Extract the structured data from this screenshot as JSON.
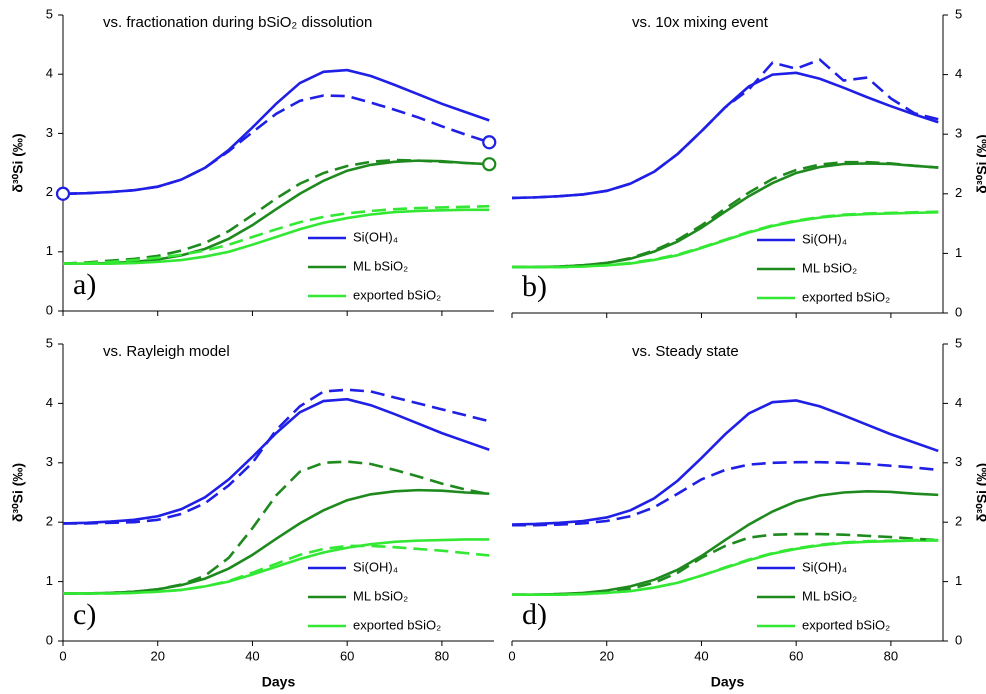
{
  "chart_data": [
    {
      "type": "line",
      "title": "vs. fractionation during bSiO₂ dissolution",
      "panel_label": "a)",
      "y_label": "δ³⁰Si (‰)",
      "y_axis_side": "left",
      "legend": "lower right",
      "x": [
        0,
        5,
        10,
        15,
        20,
        25,
        30,
        35,
        40,
        45,
        50,
        55,
        60,
        65,
        70,
        75,
        80,
        85,
        90
      ],
      "xlim": [
        0,
        91
      ],
      "xticks": [
        0,
        20,
        40,
        60,
        80
      ],
      "x_tick_labels": false,
      "ylim": [
        0,
        5
      ],
      "yticks": [
        0,
        1,
        2,
        3,
        4,
        5
      ],
      "series": [
        {
          "name": "Si(OH)₄",
          "color": "#1f1fe6",
          "dashed": false,
          "values": [
            1.98,
            1.99,
            2.01,
            2.04,
            2.1,
            2.22,
            2.42,
            2.72,
            3.1,
            3.5,
            3.85,
            4.04,
            4.07,
            3.97,
            3.82,
            3.66,
            3.5,
            3.36,
            3.22
          ]
        },
        {
          "name": "ML bSiO₂",
          "color": "#1e8a1e",
          "dashed": false,
          "values": [
            0.8,
            0.8,
            0.81,
            0.83,
            0.87,
            0.94,
            1.05,
            1.22,
            1.45,
            1.72,
            1.98,
            2.2,
            2.37,
            2.47,
            2.52,
            2.54,
            2.53,
            2.5,
            2.48
          ]
        },
        {
          "name": "exported bSiO₂",
          "color": "#33e833",
          "dashed": false,
          "values": [
            0.8,
            0.8,
            0.8,
            0.81,
            0.83,
            0.86,
            0.92,
            1.0,
            1.12,
            1.25,
            1.38,
            1.49,
            1.57,
            1.63,
            1.67,
            1.69,
            1.7,
            1.71,
            1.71
          ]
        },
        {
          "color": "#1f1fe6",
          "dashed": true,
          "values": [
            1.98,
            1.99,
            2.01,
            2.04,
            2.1,
            2.22,
            2.42,
            2.7,
            3.02,
            3.33,
            3.55,
            3.64,
            3.63,
            3.52,
            3.4,
            3.27,
            3.12,
            2.98,
            2.85
          ]
        },
        {
          "color": "#1e8a1e",
          "dashed": true,
          "values": [
            0.8,
            0.82,
            0.85,
            0.88,
            0.93,
            1.02,
            1.15,
            1.35,
            1.62,
            1.9,
            2.15,
            2.33,
            2.45,
            2.52,
            2.55,
            2.54,
            2.52,
            2.5,
            2.48
          ]
        },
        {
          "color": "#33e833",
          "dashed": true,
          "values": [
            0.8,
            0.81,
            0.83,
            0.86,
            0.9,
            0.95,
            1.02,
            1.12,
            1.25,
            1.38,
            1.5,
            1.59,
            1.65,
            1.69,
            1.72,
            1.74,
            1.75,
            1.76,
            1.77
          ]
        }
      ],
      "markers": {
        "x": [
          0,
          90,
          90
        ],
        "values": [
          1.98,
          2.85,
          2.48
        ],
        "colors": [
          "#1f1fe6",
          "#1f1fe6",
          "#1e8a1e"
        ]
      }
    },
    {
      "type": "line",
      "title": "vs. 10x mixing event",
      "panel_label": "b)",
      "y_label": "δ³⁰Si (‰)",
      "y_axis_side": "right",
      "legend": "lower right",
      "x": [
        0,
        5,
        10,
        15,
        20,
        25,
        30,
        35,
        40,
        45,
        50,
        55,
        60,
        65,
        70,
        75,
        80,
        85,
        90
      ],
      "xlim": [
        0,
        91
      ],
      "xticks": [
        0,
        20,
        40,
        60,
        80
      ],
      "x_tick_labels": false,
      "ylim": [
        0,
        5
      ],
      "yticks": [
        0,
        1,
        2,
        3,
        4,
        5
      ],
      "series": [
        {
          "name": "Si(OH)₄",
          "color": "#1f1fe6",
          "dashed": false,
          "values": [
            1.93,
            1.94,
            1.96,
            1.99,
            2.05,
            2.17,
            2.37,
            2.67,
            3.05,
            3.45,
            3.8,
            4.0,
            4.03,
            3.93,
            3.78,
            3.62,
            3.47,
            3.33,
            3.2
          ]
        },
        {
          "name": "ML bSiO₂",
          "color": "#1e8a1e",
          "dashed": false,
          "values": [
            0.77,
            0.77,
            0.78,
            0.8,
            0.84,
            0.91,
            1.03,
            1.2,
            1.43,
            1.7,
            1.96,
            2.18,
            2.35,
            2.45,
            2.5,
            2.51,
            2.5,
            2.47,
            2.44
          ]
        },
        {
          "name": "exported bSiO₂",
          "color": "#33e833",
          "dashed": false,
          "values": [
            0.77,
            0.77,
            0.77,
            0.78,
            0.8,
            0.83,
            0.89,
            0.97,
            1.09,
            1.22,
            1.35,
            1.46,
            1.54,
            1.6,
            1.64,
            1.66,
            1.67,
            1.68,
            1.69
          ]
        },
        {
          "color": "#1f1fe6",
          "dashed": true,
          "values": [
            1.93,
            1.94,
            1.96,
            1.99,
            2.05,
            2.17,
            2.37,
            2.67,
            3.05,
            3.45,
            3.75,
            4.2,
            4.1,
            4.25,
            3.9,
            3.95,
            3.6,
            3.35,
            3.25
          ]
        },
        {
          "color": "#1e8a1e",
          "dashed": true,
          "values": [
            0.77,
            0.77,
            0.78,
            0.8,
            0.84,
            0.92,
            1.05,
            1.23,
            1.47,
            1.75,
            2.02,
            2.25,
            2.4,
            2.49,
            2.53,
            2.53,
            2.51,
            2.47,
            2.44
          ]
        },
        {
          "color": "#33e833",
          "dashed": true,
          "values": [
            0.77,
            0.77,
            0.77,
            0.78,
            0.8,
            0.84,
            0.9,
            0.98,
            1.1,
            1.23,
            1.36,
            1.47,
            1.55,
            1.61,
            1.65,
            1.67,
            1.68,
            1.69,
            1.7
          ]
        }
      ]
    },
    {
      "type": "line",
      "title": "vs. Rayleigh model",
      "panel_label": "c)",
      "y_label": "δ³⁰Si (‰)",
      "y_axis_side": "left",
      "legend": "lower right",
      "x_label": "Days",
      "x": [
        0,
        5,
        10,
        15,
        20,
        25,
        30,
        35,
        40,
        45,
        50,
        55,
        60,
        65,
        70,
        75,
        80,
        85,
        90
      ],
      "xlim": [
        0,
        91
      ],
      "xticks": [
        0,
        20,
        40,
        60,
        80
      ],
      "x_tick_labels": true,
      "ylim": [
        0,
        5
      ],
      "yticks": [
        0,
        1,
        2,
        3,
        4,
        5
      ],
      "series": [
        {
          "name": "Si(OH)₄",
          "color": "#1f1fe6",
          "dashed": false,
          "values": [
            1.98,
            1.99,
            2.01,
            2.04,
            2.1,
            2.22,
            2.42,
            2.72,
            3.1,
            3.5,
            3.85,
            4.04,
            4.07,
            3.97,
            3.82,
            3.66,
            3.5,
            3.36,
            3.22
          ]
        },
        {
          "name": "ML bSiO₂",
          "color": "#1e8a1e",
          "dashed": false,
          "values": [
            0.8,
            0.8,
            0.81,
            0.83,
            0.87,
            0.94,
            1.05,
            1.22,
            1.45,
            1.72,
            1.98,
            2.2,
            2.37,
            2.47,
            2.52,
            2.54,
            2.53,
            2.5,
            2.48
          ]
        },
        {
          "name": "exported bSiO₂",
          "color": "#33e833",
          "dashed": false,
          "values": [
            0.8,
            0.8,
            0.8,
            0.81,
            0.83,
            0.86,
            0.92,
            1.0,
            1.12,
            1.25,
            1.38,
            1.49,
            1.57,
            1.63,
            1.67,
            1.69,
            1.7,
            1.71,
            1.71
          ]
        },
        {
          "color": "#1f1fe6",
          "dashed": true,
          "values": [
            1.98,
            1.98,
            1.99,
            2.0,
            2.04,
            2.14,
            2.32,
            2.62,
            3.0,
            3.55,
            3.95,
            4.2,
            4.23,
            4.2,
            4.1,
            4.0,
            3.9,
            3.8,
            3.7
          ]
        },
        {
          "color": "#1e8a1e",
          "dashed": true,
          "values": [
            0.8,
            0.8,
            0.81,
            0.83,
            0.87,
            0.95,
            1.1,
            1.4,
            1.9,
            2.45,
            2.85,
            3.0,
            3.02,
            2.98,
            2.88,
            2.77,
            2.65,
            2.55,
            2.47
          ]
        },
        {
          "color": "#33e833",
          "dashed": true,
          "values": [
            0.8,
            0.8,
            0.8,
            0.81,
            0.83,
            0.86,
            0.92,
            1.01,
            1.15,
            1.3,
            1.45,
            1.55,
            1.6,
            1.6,
            1.58,
            1.55,
            1.52,
            1.48,
            1.44
          ]
        }
      ]
    },
    {
      "type": "line",
      "title": "vs. Steady state",
      "panel_label": "d)",
      "y_label": "δ³⁰Si (‰)",
      "y_axis_side": "right",
      "legend": "lower right",
      "x_label": "Days",
      "x": [
        0,
        5,
        10,
        15,
        20,
        25,
        30,
        35,
        40,
        45,
        50,
        55,
        60,
        65,
        70,
        75,
        80,
        85,
        90
      ],
      "xlim": [
        0,
        91
      ],
      "xticks": [
        0,
        20,
        40,
        60,
        80
      ],
      "x_tick_labels": true,
      "ylim": [
        0,
        5
      ],
      "yticks": [
        0,
        1,
        2,
        3,
        4,
        5
      ],
      "series": [
        {
          "name": "Si(OH)₄",
          "color": "#1f1fe6",
          "dashed": false,
          "values": [
            1.96,
            1.97,
            1.99,
            2.02,
            2.08,
            2.2,
            2.4,
            2.7,
            3.08,
            3.48,
            3.83,
            4.02,
            4.05,
            3.95,
            3.8,
            3.64,
            3.48,
            3.34,
            3.2
          ]
        },
        {
          "name": "ML bSiO₂",
          "color": "#1e8a1e",
          "dashed": false,
          "values": [
            0.78,
            0.78,
            0.79,
            0.81,
            0.85,
            0.92,
            1.03,
            1.2,
            1.43,
            1.7,
            1.96,
            2.18,
            2.35,
            2.45,
            2.5,
            2.52,
            2.51,
            2.48,
            2.46
          ]
        },
        {
          "name": "exported bSiO₂",
          "color": "#33e833",
          "dashed": false,
          "values": [
            0.78,
            0.78,
            0.78,
            0.79,
            0.81,
            0.84,
            0.9,
            0.98,
            1.1,
            1.23,
            1.36,
            1.47,
            1.55,
            1.61,
            1.65,
            1.67,
            1.68,
            1.69,
            1.69
          ]
        },
        {
          "color": "#1f1fe6",
          "dashed": true,
          "values": [
            1.95,
            1.95,
            1.96,
            1.98,
            2.02,
            2.1,
            2.25,
            2.48,
            2.72,
            2.88,
            2.97,
            3.0,
            3.01,
            3.01,
            3.0,
            2.98,
            2.95,
            2.92,
            2.88
          ]
        },
        {
          "color": "#1e8a1e",
          "dashed": true,
          "values": [
            0.78,
            0.78,
            0.79,
            0.8,
            0.83,
            0.88,
            0.98,
            1.15,
            1.4,
            1.6,
            1.74,
            1.79,
            1.8,
            1.8,
            1.79,
            1.77,
            1.75,
            1.72,
            1.7
          ]
        },
        {
          "color": "#33e833",
          "dashed": true,
          "values": [
            0.78,
            0.78,
            0.78,
            0.79,
            0.81,
            0.84,
            0.9,
            0.98,
            1.1,
            1.24,
            1.37,
            1.48,
            1.56,
            1.62,
            1.66,
            1.68,
            1.69,
            1.7,
            1.7
          ]
        }
      ]
    }
  ]
}
